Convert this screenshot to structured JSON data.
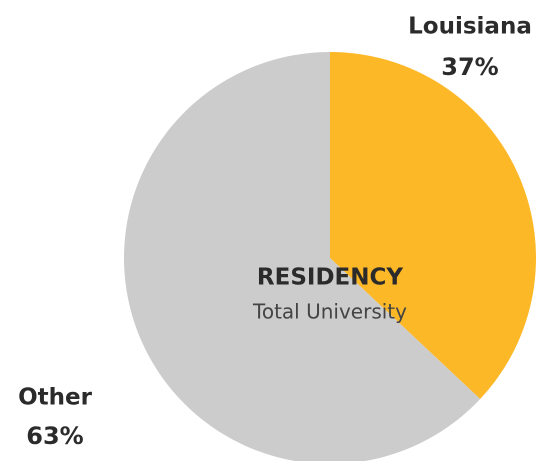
{
  "chart_data": {
    "type": "pie",
    "title": "RESIDENCY",
    "subtitle": "Total University",
    "categories": [
      "Louisiana",
      "Other"
    ],
    "values": [
      37,
      63
    ],
    "value_labels": [
      "37%",
      "63%"
    ],
    "colors": [
      "#fdb827",
      "#cccccc"
    ]
  }
}
